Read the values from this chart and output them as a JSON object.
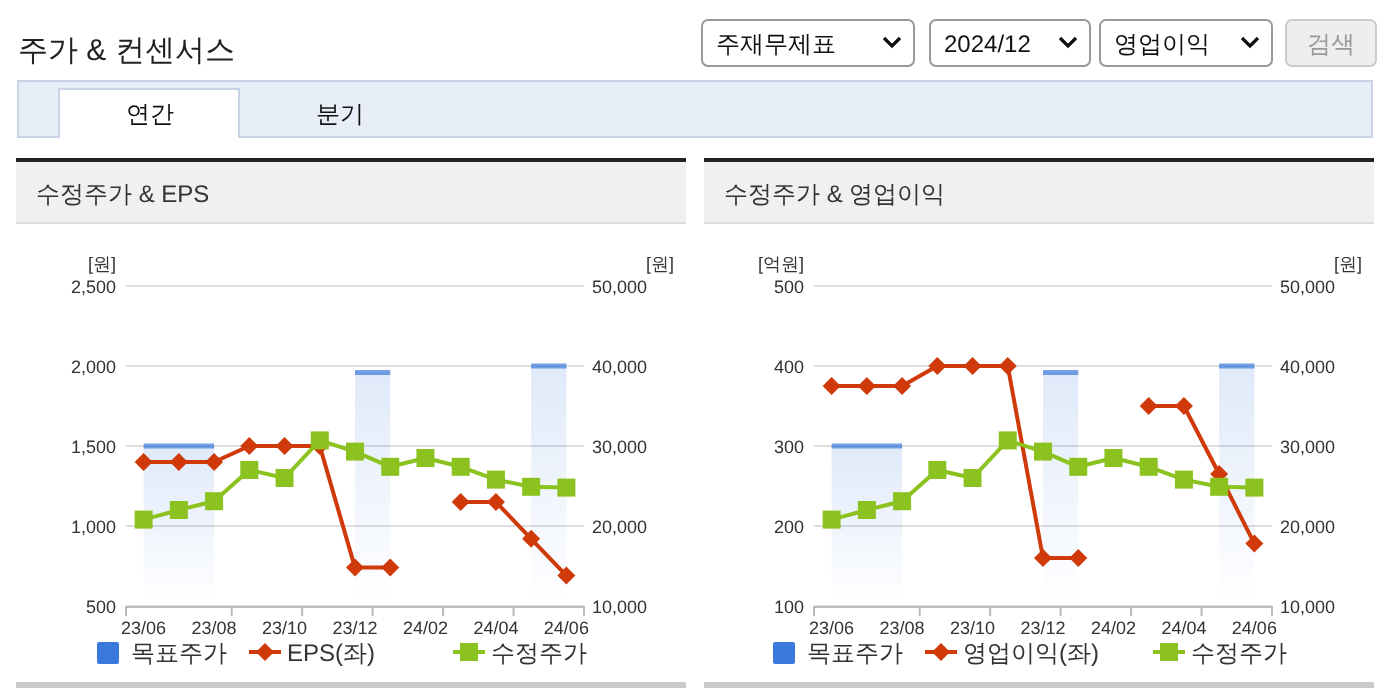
{
  "chart_data": [
    {
      "type": "other",
      "title": "주가 & 컨센서스",
      "annotations": [
        "주재무제표",
        "2024/12",
        "영업이익",
        "검색",
        "연간",
        "분기"
      ]
    },
    {
      "type": "line",
      "title": "수정주가 & EPS",
      "ylabel": "[원]",
      "y2label": "[원]",
      "categories": [
        "23/06",
        null,
        "23/08",
        null,
        "23/10",
        null,
        "23/12",
        null,
        "24/02",
        null,
        "24/04",
        null,
        "24/06"
      ],
      "ylim": [
        500,
        2500
      ],
      "yticks": [
        {
          "value": 500,
          "label": "500"
        },
        {
          "value": 1000,
          "label": "1,000"
        },
        {
          "value": 1500,
          "label": "1,500"
        },
        {
          "value": 2000,
          "label": "2,000"
        },
        {
          "value": 2500,
          "label": "2,500"
        }
      ],
      "y2lim": [
        10000,
        50000
      ],
      "y2ticks": [
        {
          "value": 10000,
          "label": "10,000"
        },
        {
          "value": 20000,
          "label": "20,000"
        },
        {
          "value": 30000,
          "label": "30,000"
        },
        {
          "value": 40000,
          "label": "40,000"
        },
        {
          "value": 50000,
          "label": "50,000"
        }
      ],
      "grid": "y",
      "legend": "bottom",
      "series": [
        {
          "name": "목표주가",
          "type": "area",
          "axis": "y2",
          "color": "#3a78dc",
          "values": [
            30000,
            30000,
            30000,
            null,
            null,
            null,
            39200,
            39200,
            null,
            null,
            null,
            40000,
            40000
          ]
        },
        {
          "name": "EPS(좌)",
          "type": "line",
          "axis": "y",
          "color": "#d03a0a",
          "marker": "diamond",
          "values": [
            1400,
            1400,
            1400,
            1500,
            1500,
            1500,
            740,
            740,
            null,
            1150,
            1150,
            920,
            690
          ]
        },
        {
          "name": "수정주가",
          "type": "line",
          "axis": "y2",
          "color": "#8cc21f",
          "marker": "square",
          "values": [
            20800,
            22000,
            23100,
            27000,
            26000,
            30700,
            29300,
            27400,
            28500,
            27400,
            25800,
            24900,
            24800
          ]
        }
      ]
    },
    {
      "type": "line",
      "title": "수정주가 & 영업이익",
      "ylabel": "[억원]",
      "y2label": "[원]",
      "categories": [
        "23/06",
        null,
        "23/08",
        null,
        "23/10",
        null,
        "23/12",
        null,
        "24/02",
        null,
        "24/04",
        null,
        "24/06"
      ],
      "ylim": [
        100,
        500
      ],
      "yticks": [
        100,
        200,
        300,
        400,
        500
      ],
      "y2lim": [
        10000,
        50000
      ],
      "y2ticks": [
        {
          "value": 10000,
          "label": "10,000"
        },
        {
          "value": 20000,
          "label": "20,000"
        },
        {
          "value": 30000,
          "label": "30,000"
        },
        {
          "value": 40000,
          "label": "40,000"
        },
        {
          "value": 50000,
          "label": "50,000"
        }
      ],
      "grid": "y",
      "legend": "bottom",
      "series": [
        {
          "name": "목표주가",
          "type": "area",
          "axis": "y2",
          "color": "#3a78dc",
          "values": [
            30000,
            30000,
            30000,
            null,
            null,
            null,
            39200,
            39200,
            null,
            null,
            null,
            40000,
            40000
          ]
        },
        {
          "name": "영업이익(좌)",
          "type": "line",
          "axis": "y",
          "color": "#d03a0a",
          "marker": "diamond",
          "values": [
            375,
            375,
            375,
            400,
            400,
            400,
            160,
            160,
            null,
            350,
            350,
            265,
            178
          ]
        },
        {
          "name": "수정주가",
          "type": "line",
          "axis": "y2",
          "color": "#8cc21f",
          "marker": "square",
          "values": [
            20800,
            22000,
            23100,
            27000,
            26000,
            30700,
            29300,
            27400,
            28500,
            27400,
            25800,
            24900,
            24800
          ]
        }
      ]
    }
  ]
}
